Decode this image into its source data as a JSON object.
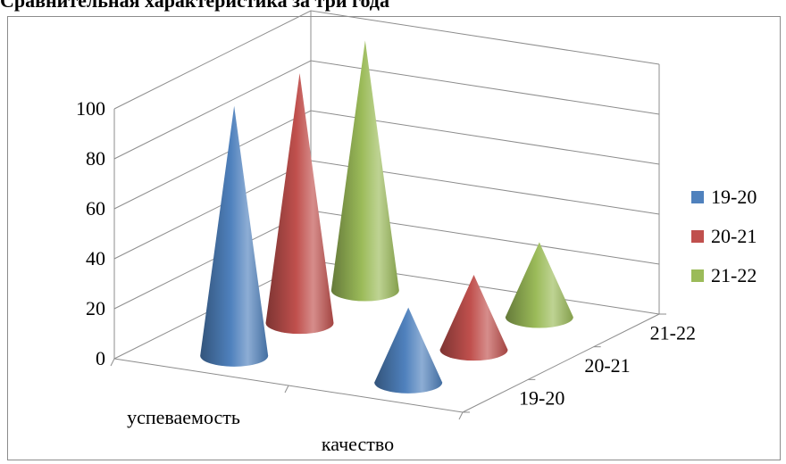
{
  "heading": "Сравнительная характеристика за три года",
  "chart_data": {
    "type": "bar",
    "subtype": "3d-cone",
    "title": "",
    "categories": [
      "успеваемость",
      "качество"
    ],
    "depth_labels": [
      "19-20",
      "20-21",
      "21-22"
    ],
    "ylim": [
      0,
      100
    ],
    "yticks": [
      "0",
      "20",
      "40",
      "60",
      "80",
      "100"
    ],
    "series": [
      {
        "name": "19-20",
        "color": "#4f81bd",
        "values": [
          100,
          30
        ]
      },
      {
        "name": "20-21",
        "color": "#c0504d",
        "values": [
          100,
          30
        ]
      },
      {
        "name": "21-22",
        "color": "#9bbb59",
        "values": [
          100,
          30
        ]
      }
    ],
    "legend": {
      "position": "right",
      "entries": [
        "19-20",
        "20-21",
        "21-22"
      ]
    },
    "grid": true
  }
}
